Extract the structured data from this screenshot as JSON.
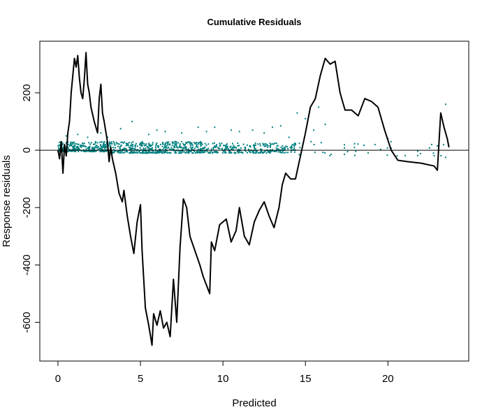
{
  "chart_data": {
    "type": "line",
    "title": "Cumulative Residuals",
    "xlabel": "Predicted",
    "ylabel": "Response  residuals",
    "xlim": [
      -1.1,
      24.9
    ],
    "ylim": [
      -735,
      380
    ],
    "x_ticks": [
      0,
      5,
      10,
      15,
      20
    ],
    "y_ticks": [
      -600,
      -400,
      -200,
      0,
      200
    ],
    "reference_line_y": 0,
    "colors": {
      "cumulative": "#000000",
      "residuals": "#008080",
      "reference": "#000000"
    },
    "series": [
      {
        "style": "line",
        "points": [
          [
            0.0,
            0
          ],
          [
            0.1,
            -30
          ],
          [
            0.2,
            30
          ],
          [
            0.3,
            -80
          ],
          [
            0.4,
            20
          ],
          [
            0.5,
            -20
          ],
          [
            0.6,
            60
          ],
          [
            0.7,
            100
          ],
          [
            0.8,
            200
          ],
          [
            0.9,
            260
          ],
          [
            1.0,
            320
          ],
          [
            1.1,
            290
          ],
          [
            1.2,
            330
          ],
          [
            1.3,
            250
          ],
          [
            1.4,
            200
          ],
          [
            1.5,
            180
          ],
          [
            1.6,
            250
          ],
          [
            1.7,
            340
          ],
          [
            1.8,
            230
          ],
          [
            1.9,
            200
          ],
          [
            2.0,
            150
          ],
          [
            2.2,
            100
          ],
          [
            2.4,
            60
          ],
          [
            2.5,
            180
          ],
          [
            2.6,
            230
          ],
          [
            2.7,
            130
          ],
          [
            2.8,
            100
          ],
          [
            3.0,
            30
          ],
          [
            3.1,
            -40
          ],
          [
            3.2,
            10
          ],
          [
            3.3,
            -30
          ],
          [
            3.5,
            -80
          ],
          [
            3.7,
            -150
          ],
          [
            3.9,
            -180
          ],
          [
            4.0,
            -140
          ],
          [
            4.2,
            -230
          ],
          [
            4.4,
            -300
          ],
          [
            4.6,
            -360
          ],
          [
            4.8,
            -250
          ],
          [
            5.0,
            -190
          ],
          [
            5.1,
            -350
          ],
          [
            5.3,
            -550
          ],
          [
            5.5,
            -610
          ],
          [
            5.7,
            -680
          ],
          [
            5.8,
            -570
          ],
          [
            6.0,
            -610
          ],
          [
            6.2,
            -560
          ],
          [
            6.4,
            -620
          ],
          [
            6.6,
            -600
          ],
          [
            6.8,
            -650
          ],
          [
            7.0,
            -450
          ],
          [
            7.2,
            -600
          ],
          [
            7.4,
            -340
          ],
          [
            7.6,
            -170
          ],
          [
            7.8,
            -200
          ],
          [
            8.0,
            -300
          ],
          [
            8.3,
            -350
          ],
          [
            8.6,
            -400
          ],
          [
            8.8,
            -440
          ],
          [
            9.0,
            -470
          ],
          [
            9.2,
            -500
          ],
          [
            9.3,
            -320
          ],
          [
            9.5,
            -350
          ],
          [
            9.8,
            -260
          ],
          [
            10.2,
            -240
          ],
          [
            10.5,
            -320
          ],
          [
            10.8,
            -280
          ],
          [
            11.0,
            -200
          ],
          [
            11.3,
            -300
          ],
          [
            11.6,
            -330
          ],
          [
            11.9,
            -250
          ],
          [
            12.2,
            -210
          ],
          [
            12.5,
            -180
          ],
          [
            12.8,
            -230
          ],
          [
            13.1,
            -270
          ],
          [
            13.4,
            -200
          ],
          [
            13.6,
            -120
          ],
          [
            13.8,
            -80
          ],
          [
            14.1,
            -100
          ],
          [
            14.4,
            -100
          ],
          [
            14.7,
            -20
          ],
          [
            15.0,
            60
          ],
          [
            15.3,
            150
          ],
          [
            15.6,
            180
          ],
          [
            15.9,
            260
          ],
          [
            16.2,
            320
          ],
          [
            16.5,
            300
          ],
          [
            16.8,
            310
          ],
          [
            17.1,
            200
          ],
          [
            17.4,
            140
          ],
          [
            17.8,
            140
          ],
          [
            18.2,
            120
          ],
          [
            18.6,
            180
          ],
          [
            19.0,
            170
          ],
          [
            19.4,
            150
          ],
          [
            19.8,
            70
          ],
          [
            20.2,
            0
          ],
          [
            20.6,
            -35
          ],
          [
            21.2,
            -40
          ],
          [
            22.0,
            -45
          ],
          [
            22.8,
            -55
          ],
          [
            23.0,
            -70
          ],
          [
            23.2,
            130
          ],
          [
            23.4,
            80
          ],
          [
            23.6,
            40
          ],
          [
            23.7,
            10
          ]
        ]
      },
      {
        "style": "points",
        "bands": [
          {
            "x_range": [
              0.0,
              3.0
            ],
            "y_range": [
              -5,
              30
            ],
            "count": 280
          },
          {
            "x_range": [
              3.0,
              9.0
            ],
            "y_range": [
              -10,
              30
            ],
            "count": 480
          },
          {
            "x_range": [
              9.0,
              14.5
            ],
            "y_range": [
              -10,
              25
            ],
            "count": 260
          },
          {
            "x_range": [
              14.5,
              24.0
            ],
            "y_range": [
              -20,
              30
            ],
            "count": 40
          }
        ],
        "outliers": [
          [
            0.5,
            50
          ],
          [
            1.2,
            55
          ],
          [
            1.8,
            45
          ],
          [
            2.6,
            60
          ],
          [
            3.0,
            45
          ],
          [
            3.8,
            75
          ],
          [
            4.5,
            100
          ],
          [
            5.5,
            55
          ],
          [
            6.0,
            70
          ],
          [
            6.5,
            65
          ],
          [
            7.5,
            60
          ],
          [
            8.5,
            80
          ],
          [
            9.0,
            65
          ],
          [
            9.5,
            80
          ],
          [
            10.5,
            70
          ],
          [
            11.0,
            65
          ],
          [
            11.8,
            70
          ],
          [
            12.5,
            60
          ],
          [
            13.0,
            80
          ],
          [
            13.5,
            85
          ],
          [
            14.0,
            45
          ],
          [
            14.5,
            130
          ],
          [
            15.0,
            110
          ],
          [
            15.5,
            70
          ],
          [
            15.8,
            150
          ],
          [
            16.2,
            90
          ],
          [
            20.0,
            40
          ],
          [
            23.5,
            160
          ],
          [
            23.5,
            -25
          ],
          [
            23.0,
            15
          ]
        ]
      }
    ]
  }
}
